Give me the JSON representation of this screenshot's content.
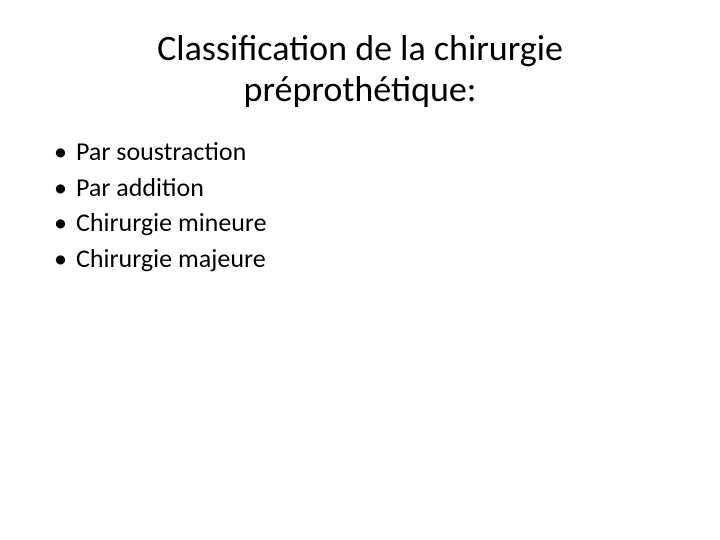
{
  "slide": {
    "title_line1": "Classification de la chirurgie",
    "title_line2": "préprothétique:",
    "bullets": [
      {
        "marker": "•",
        "text": "Par soustraction"
      },
      {
        "marker": "•",
        "text": "Par addition"
      },
      {
        "marker": "•",
        "text": "Chirurgie mineure"
      },
      {
        "marker": "•",
        "text": "Chirurgie majeure"
      }
    ]
  },
  "style": {
    "background_color": "#ffffff",
    "text_color": "#000000",
    "title_fontsize": 36,
    "body_fontsize": 26,
    "font_family": "Calibri"
  }
}
